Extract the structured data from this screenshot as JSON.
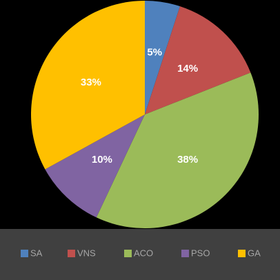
{
  "chart_data": {
    "type": "pie",
    "categories": [
      "SA",
      "VNS",
      "ACO",
      "PSO",
      "GA"
    ],
    "values": [
      5,
      14,
      38,
      10,
      33
    ],
    "value_labels": [
      "5%",
      "14%",
      "38%",
      "10%",
      "33%"
    ],
    "colors": [
      "#4f81bd",
      "#c0504d",
      "#9bbb59",
      "#8064a2",
      "#ffc000"
    ],
    "legend": "bottom"
  }
}
